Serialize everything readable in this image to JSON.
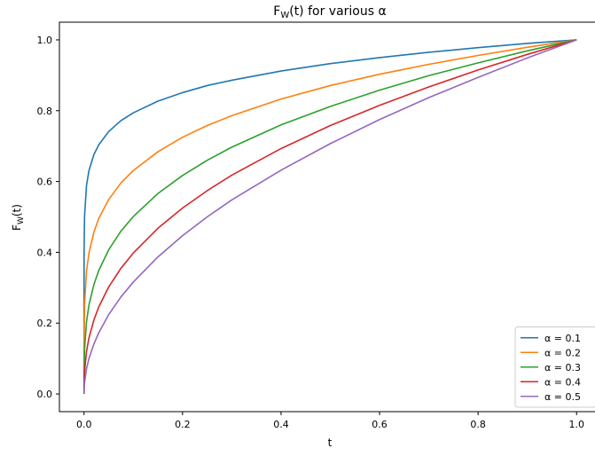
{
  "chart_data": {
    "type": "line",
    "title": "F_W(t) for various α",
    "title_main": "F",
    "title_sub": "W",
    "title_rest": "(t) for various α",
    "xlabel": "t",
    "ylabel_main": "F",
    "ylabel_sub": "W",
    "ylabel_rest": "(t)",
    "xlim": [
      -0.05,
      1.05
    ],
    "ylim": [
      -0.05,
      1.05
    ],
    "x_ticks": [
      0.0,
      0.2,
      0.4,
      0.6,
      0.8,
      1.0
    ],
    "x_tick_labels": [
      "0.0",
      "0.2",
      "0.4",
      "0.6",
      "0.8",
      "1.0"
    ],
    "y_ticks": [
      0.0,
      0.2,
      0.4,
      0.6,
      0.8,
      1.0
    ],
    "y_tick_labels": [
      "0.0",
      "0.2",
      "0.4",
      "0.6",
      "0.8",
      "1.0"
    ],
    "grid": false,
    "legend_position": "lower-right",
    "x": [
      0,
      0.0001,
      0.001,
      0.005,
      0.01,
      0.02,
      0.03,
      0.05,
      0.075,
      0.1,
      0.15,
      0.2,
      0.25,
      0.3,
      0.4,
      0.5,
      0.6,
      0.7,
      0.8,
      0.9,
      1.0
    ],
    "series": [
      {
        "name": "α = 0.1",
        "color": "#1f77b4",
        "values": [
          0,
          0.398,
          0.501,
          0.589,
          0.631,
          0.676,
          0.704,
          0.741,
          0.772,
          0.794,
          0.827,
          0.851,
          0.871,
          0.886,
          0.912,
          0.933,
          0.95,
          0.965,
          0.978,
          0.99,
          1.0
        ]
      },
      {
        "name": "α = 0.2",
        "color": "#ff7f0e",
        "values": [
          0,
          0.158,
          0.251,
          0.347,
          0.398,
          0.457,
          0.496,
          0.549,
          0.596,
          0.631,
          0.684,
          0.725,
          0.758,
          0.786,
          0.833,
          0.871,
          0.903,
          0.931,
          0.956,
          0.979,
          1.0
        ]
      },
      {
        "name": "α = 0.3",
        "color": "#2ca02c",
        "values": [
          0,
          0.063,
          0.126,
          0.204,
          0.251,
          0.309,
          0.349,
          0.407,
          0.46,
          0.501,
          0.566,
          0.617,
          0.66,
          0.697,
          0.76,
          0.812,
          0.858,
          0.899,
          0.935,
          0.969,
          1.0
        ]
      },
      {
        "name": "α = 0.4",
        "color": "#d62728",
        "values": [
          0,
          0.025,
          0.063,
          0.12,
          0.158,
          0.209,
          0.246,
          0.302,
          0.355,
          0.398,
          0.468,
          0.525,
          0.574,
          0.618,
          0.693,
          0.758,
          0.815,
          0.867,
          0.915,
          0.959,
          1.0
        ]
      },
      {
        "name": "α = 0.5",
        "color": "#9467bd",
        "values": [
          0,
          0.01,
          0.032,
          0.071,
          0.1,
          0.141,
          0.173,
          0.224,
          0.274,
          0.316,
          0.387,
          0.447,
          0.5,
          0.548,
          0.632,
          0.707,
          0.775,
          0.837,
          0.894,
          0.949,
          1.0
        ]
      }
    ]
  }
}
